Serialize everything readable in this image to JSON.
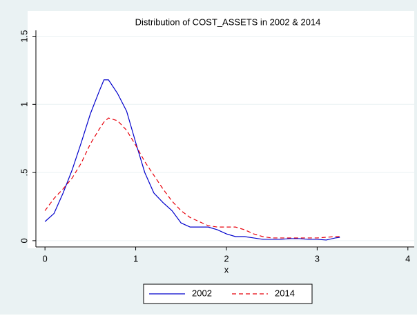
{
  "chart_data": {
    "type": "line",
    "title": "Distribution of COST_ASSETS in 2002 & 2014",
    "x_label": "x",
    "x": [
      0,
      0.1,
      0.2,
      0.3,
      0.4,
      0.5,
      0.6,
      0.65,
      0.7,
      0.8,
      0.9,
      1.0,
      1.1,
      1.2,
      1.3,
      1.4,
      1.5,
      1.6,
      1.7,
      1.8,
      1.9,
      2.0,
      2.1,
      2.2,
      2.3,
      2.4,
      2.5,
      2.6,
      2.7,
      2.8,
      2.9,
      3.0,
      3.1,
      3.2,
      3.25
    ],
    "series": [
      {
        "name": "2002",
        "color": "#0000cc",
        "dash": "solid",
        "values": [
          0.14,
          0.2,
          0.35,
          0.52,
          0.72,
          0.93,
          1.1,
          1.18,
          1.18,
          1.08,
          0.95,
          0.72,
          0.5,
          0.35,
          0.28,
          0.22,
          0.13,
          0.1,
          0.1,
          0.1,
          0.08,
          0.05,
          0.03,
          0.03,
          0.02,
          0.01,
          0.01,
          0.01,
          0.015,
          0.015,
          0.01,
          0.01,
          0.005,
          0.02,
          0.025
        ]
      },
      {
        "name": "2014",
        "color": "#e8000b",
        "dash": "dashed",
        "values": [
          0.22,
          0.31,
          0.38,
          0.46,
          0.57,
          0.71,
          0.82,
          0.87,
          0.9,
          0.88,
          0.81,
          0.7,
          0.58,
          0.48,
          0.38,
          0.29,
          0.22,
          0.17,
          0.14,
          0.11,
          0.1,
          0.1,
          0.1,
          0.08,
          0.05,
          0.03,
          0.02,
          0.02,
          0.02,
          0.02,
          0.02,
          0.02,
          0.025,
          0.03,
          0.03
        ]
      }
    ],
    "xlim": [
      -0.1,
      4.07
    ],
    "xticks": [
      0,
      1,
      2,
      3,
      4
    ],
    "ylim": [
      -0.046,
      1.543
    ],
    "yticks": [
      0,
      {
        "value": 0.5,
        "label": ".5"
      },
      1,
      1.5
    ],
    "grid": true
  }
}
